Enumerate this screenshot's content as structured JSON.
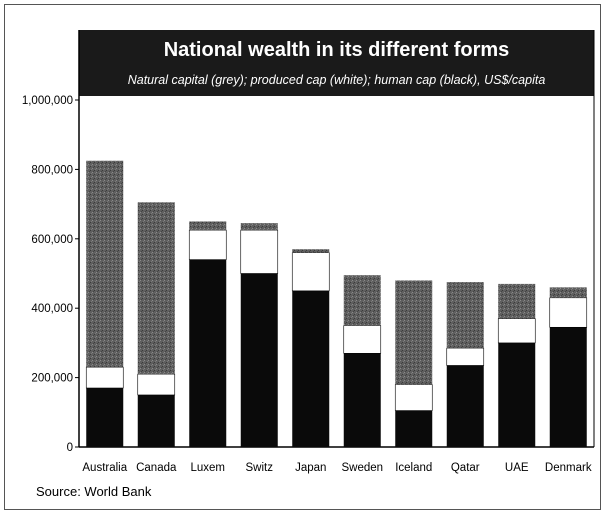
{
  "chart_data": {
    "type": "bar",
    "stacked": true,
    "title": "National wealth in its different forms",
    "subtitle": "Natural capital (grey); produced cap (white); human cap (black), US$/capita",
    "source": "Source: World Bank",
    "categories": [
      "Australia",
      "Canada",
      "Luxem",
      "Switz",
      "Japan",
      "Sweden",
      "Iceland",
      "Qatar",
      "UAE",
      "Denmark"
    ],
    "series": [
      {
        "values": [
          170000,
          150000,
          540000,
          500000,
          450000,
          270000,
          105000,
          235000,
          300000,
          345000
        ]
      },
      {
        "values": [
          60000,
          60000,
          85000,
          125000,
          110000,
          80000,
          75000,
          50000,
          70000,
          85000
        ]
      },
      {
        "values": [
          595000,
          495000,
          25000,
          20000,
          10000,
          145000,
          300000,
          190000,
          100000,
          30000
        ]
      }
    ],
    "yticks": [
      "0",
      "200,000",
      "400,000",
      "600,000",
      "800,000",
      "1,000,000"
    ],
    "ylim": [
      0,
      1000000
    ],
    "colors": {
      "human": "#0a0a0a",
      "produced": "#ffffff",
      "natural": "#5f5f5f",
      "title_bg": "#1a1a1a"
    }
  }
}
